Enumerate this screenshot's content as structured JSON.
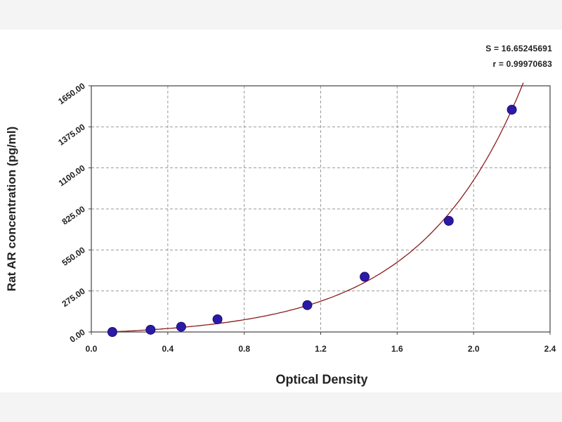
{
  "chart_data": {
    "type": "scatter",
    "xlabel": "Optical Density",
    "ylabel": "Rat AR concentration (pg/ml)",
    "xlim": [
      0,
      2.4
    ],
    "ylim": [
      0,
      1650
    ],
    "x_ticks": [
      "0.0",
      "0.4",
      "0.8",
      "1.2",
      "1.6",
      "2.0",
      "2.4"
    ],
    "y_ticks": [
      "0.00",
      "275.00",
      "550.00",
      "825.00",
      "1100.00",
      "1375.00",
      "1650.00"
    ],
    "grid": true,
    "stats": [
      "S = 16.65245691",
      "r = 0.99970683"
    ],
    "series": [
      {
        "points": [
          {
            "x": 0.11,
            "y": 0
          },
          {
            "x": 0.31,
            "y": 15
          },
          {
            "x": 0.47,
            "y": 35
          },
          {
            "x": 0.66,
            "y": 85
          },
          {
            "x": 1.13,
            "y": 180
          },
          {
            "x": 1.43,
            "y": 370
          },
          {
            "x": 1.87,
            "y": 745
          },
          {
            "x": 2.2,
            "y": 1490
          }
        ],
        "color": "#2b1aa8"
      }
    ],
    "fit_curve": {
      "type": "exponential-fit",
      "x_range": [
        0.1,
        2.26
      ],
      "color": "#8b1c1c"
    }
  }
}
